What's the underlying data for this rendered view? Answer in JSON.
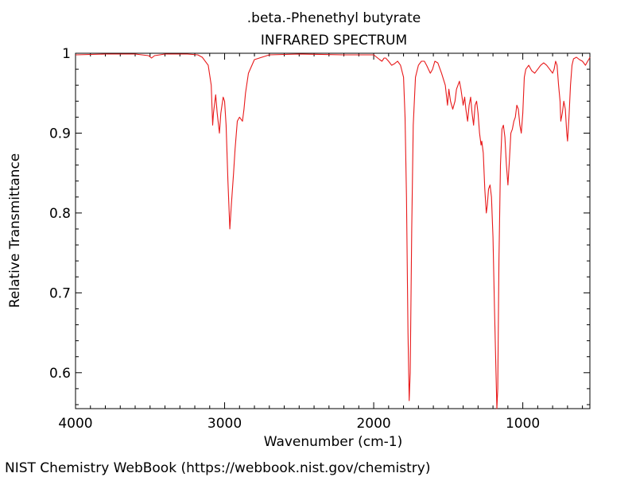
{
  "chart_data": {
    "type": "line",
    "title": ".beta.-Phenethyl butyrate",
    "subtitle": "INFRARED SPECTRUM",
    "xlabel": "Wavenumber (cm-1)",
    "ylabel": "Relative Transmittance",
    "xlim": [
      4000,
      550
    ],
    "ylim": [
      0.555,
      1.0
    ],
    "x_ticks": [
      4000,
      3000,
      2000,
      1000
    ],
    "x_tick_labels": [
      "4000",
      "3000",
      "2000",
      "1000"
    ],
    "y_ticks": [
      0.6,
      0.7,
      0.8,
      0.9,
      1.0
    ],
    "y_tick_labels": [
      "0.6",
      "0.7",
      "0.8",
      "0.9",
      "1"
    ],
    "grid": false,
    "line_color": "#e8191a",
    "series": [
      {
        "x": [
          4000,
          3800,
          3600,
          3510,
          3490,
          3470,
          3400,
          3250,
          3180,
          3150,
          3110,
          3090,
          3080,
          3075,
          3060,
          3050,
          3035,
          3025,
          3010,
          3000,
          2990,
          2978,
          2965,
          2955,
          2940,
          2930,
          2915,
          2900,
          2880,
          2870,
          2860,
          2840,
          2800,
          2700,
          2500,
          2200,
          2000,
          1960,
          1945,
          1930,
          1920,
          1900,
          1880,
          1860,
          1840,
          1820,
          1800,
          1790,
          1780,
          1770,
          1762,
          1755,
          1745,
          1735,
          1720,
          1700,
          1680,
          1660,
          1645,
          1620,
          1605,
          1590,
          1570,
          1545,
          1520,
          1505,
          1496,
          1485,
          1470,
          1455,
          1445,
          1425,
          1415,
          1400,
          1390,
          1382,
          1370,
          1360,
          1350,
          1340,
          1330,
          1320,
          1310,
          1300,
          1290,
          1280,
          1275,
          1265,
          1255,
          1245,
          1238,
          1230,
          1220,
          1210,
          1200,
          1190,
          1180,
          1174,
          1168,
          1160,
          1150,
          1140,
          1130,
          1120,
          1110,
          1100,
          1090,
          1080,
          1070,
          1060,
          1050,
          1040,
          1030,
          1020,
          1010,
          1000,
          990,
          980,
          960,
          940,
          920,
          900,
          880,
          860,
          840,
          820,
          800,
          790,
          780,
          770,
          760,
          750,
          745,
          735,
          725,
          715,
          705,
          700,
          690,
          680,
          670,
          660,
          640,
          620,
          600,
          580,
          565,
          555,
          550
        ],
        "y": [
          0.998,
          0.999,
          0.999,
          0.997,
          0.994,
          0.997,
          0.999,
          0.999,
          0.998,
          0.995,
          0.985,
          0.96,
          0.91,
          0.925,
          0.948,
          0.925,
          0.9,
          0.925,
          0.945,
          0.94,
          0.91,
          0.84,
          0.78,
          0.81,
          0.85,
          0.88,
          0.915,
          0.92,
          0.915,
          0.93,
          0.95,
          0.975,
          0.992,
          0.998,
          0.999,
          0.998,
          0.998,
          0.992,
          0.99,
          0.994,
          0.994,
          0.99,
          0.985,
          0.987,
          0.99,
          0.985,
          0.97,
          0.92,
          0.82,
          0.65,
          0.565,
          0.6,
          0.78,
          0.91,
          0.97,
          0.985,
          0.99,
          0.99,
          0.985,
          0.975,
          0.98,
          0.99,
          0.988,
          0.975,
          0.96,
          0.935,
          0.955,
          0.94,
          0.93,
          0.94,
          0.955,
          0.965,
          0.955,
          0.935,
          0.945,
          0.93,
          0.915,
          0.935,
          0.945,
          0.925,
          0.91,
          0.935,
          0.94,
          0.925,
          0.9,
          0.885,
          0.89,
          0.875,
          0.83,
          0.8,
          0.81,
          0.83,
          0.835,
          0.82,
          0.77,
          0.68,
          0.6,
          0.555,
          0.58,
          0.74,
          0.86,
          0.905,
          0.91,
          0.895,
          0.86,
          0.835,
          0.865,
          0.9,
          0.905,
          0.915,
          0.92,
          0.935,
          0.93,
          0.91,
          0.9,
          0.925,
          0.97,
          0.98,
          0.985,
          0.978,
          0.975,
          0.98,
          0.985,
          0.988,
          0.985,
          0.98,
          0.975,
          0.98,
          0.99,
          0.985,
          0.96,
          0.94,
          0.915,
          0.925,
          0.94,
          0.93,
          0.9,
          0.89,
          0.92,
          0.96,
          0.985,
          0.993,
          0.995,
          0.992,
          0.99,
          0.985,
          0.99,
          0.993,
          0.995
        ]
      }
    ]
  },
  "footer": {
    "credit": "NIST Chemistry WebBook (https://webbook.nist.gov/chemistry)"
  }
}
